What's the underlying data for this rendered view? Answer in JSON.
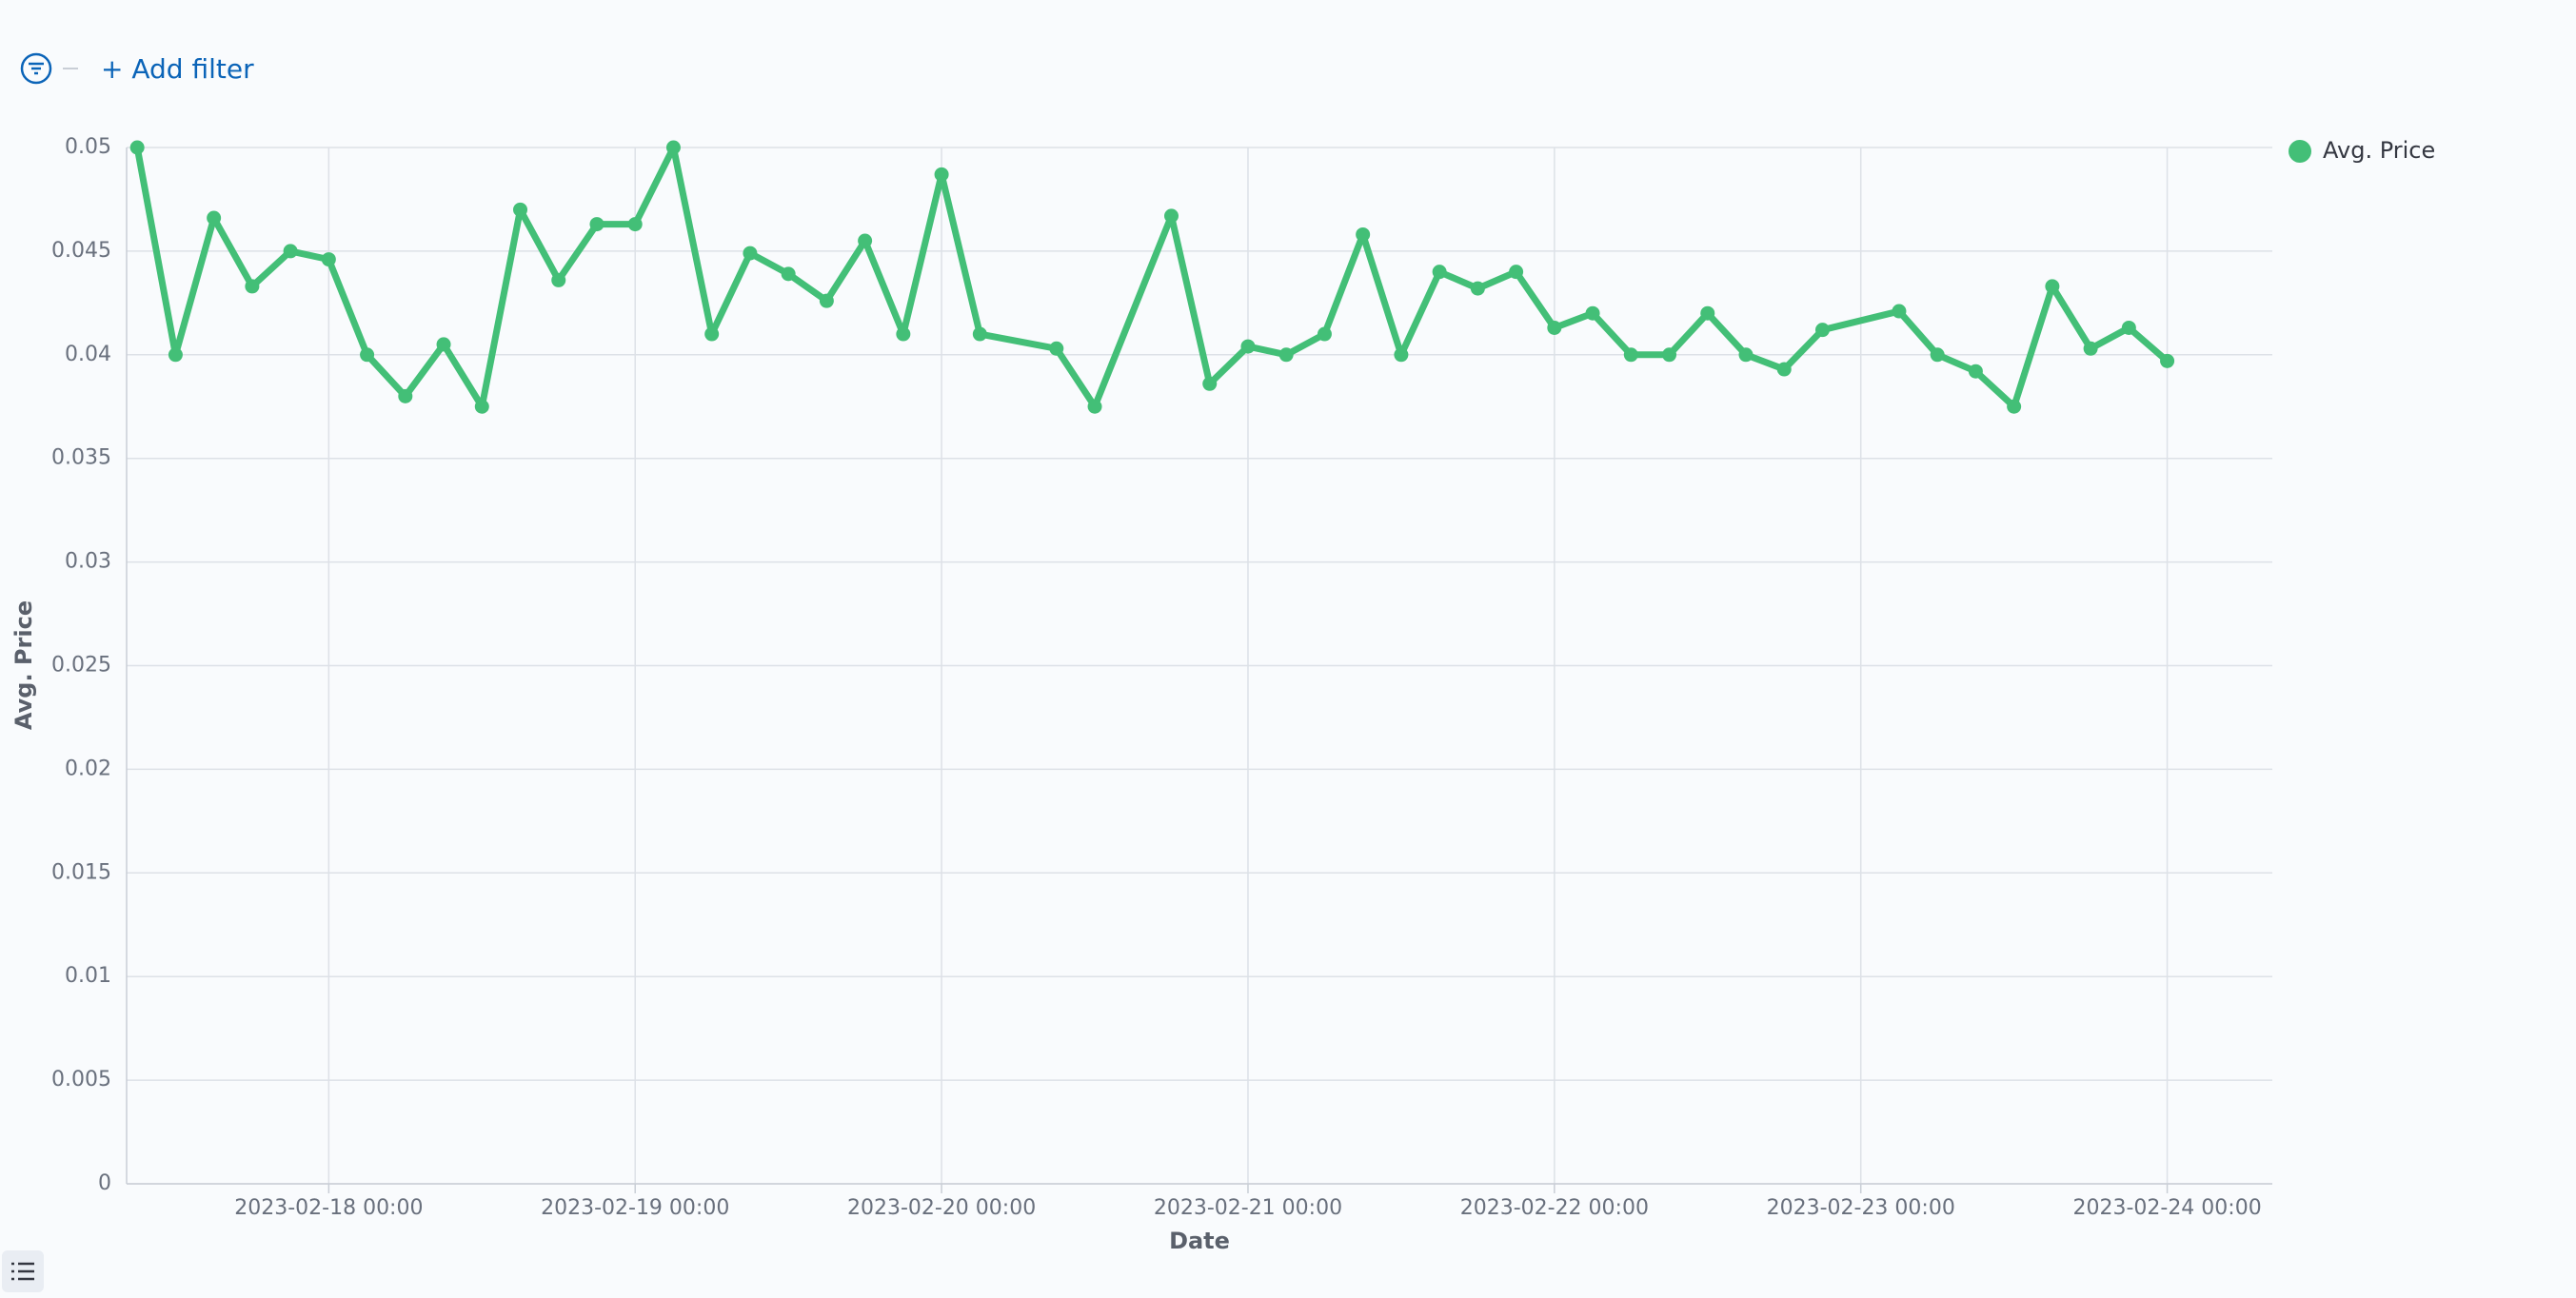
{
  "filter_bar": {
    "add_filter": "+ Add filter"
  },
  "chart_data": {
    "type": "line",
    "x_label": "Date",
    "y_label": "Avg. Price",
    "x": [
      "2023-02-17 09:00",
      "2023-02-17 12:00",
      "2023-02-17 15:00",
      "2023-02-17 18:00",
      "2023-02-17 21:00",
      "2023-02-18 00:00",
      "2023-02-18 03:00",
      "2023-02-18 06:00",
      "2023-02-18 09:00",
      "2023-02-18 12:00",
      "2023-02-18 15:00",
      "2023-02-18 18:00",
      "2023-02-18 21:00",
      "2023-02-19 00:00",
      "2023-02-19 03:00",
      "2023-02-19 06:00",
      "2023-02-19 09:00",
      "2023-02-19 12:00",
      "2023-02-19 15:00",
      "2023-02-19 18:00",
      "2023-02-19 21:00",
      "2023-02-20 00:00",
      "2023-02-20 03:00",
      "2023-02-20 09:00",
      "2023-02-20 12:00",
      "2023-02-20 18:00",
      "2023-02-20 21:00",
      "2023-02-21 00:00",
      "2023-02-21 03:00",
      "2023-02-21 06:00",
      "2023-02-21 09:00",
      "2023-02-21 12:00",
      "2023-02-21 15:00",
      "2023-02-21 18:00",
      "2023-02-21 21:00",
      "2023-02-22 00:00",
      "2023-02-22 03:00",
      "2023-02-22 06:00",
      "2023-02-22 09:00",
      "2023-02-22 12:00",
      "2023-02-22 15:00",
      "2023-02-22 18:00",
      "2023-02-22 21:00",
      "2023-02-23 03:00",
      "2023-02-23 06:00",
      "2023-02-23 09:00",
      "2023-02-23 12:00",
      "2023-02-23 15:00",
      "2023-02-23 18:00",
      "2023-02-23 21:00",
      "2023-02-24 00:00"
    ],
    "series": [
      {
        "name": "Avg. Price",
        "color": "#43bf77",
        "values": [
          0.05,
          0.04,
          0.0466,
          0.0433,
          0.045,
          0.0446,
          0.04,
          0.038,
          0.0405,
          0.0375,
          0.047,
          0.0436,
          0.0463,
          0.0463,
          0.05,
          0.041,
          0.0449,
          0.0439,
          0.0426,
          0.0455,
          0.041,
          0.0487,
          0.041,
          0.0403,
          0.0375,
          0.0467,
          0.0386,
          0.0404,
          0.04,
          0.041,
          0.0458,
          0.04,
          0.044,
          0.0432,
          0.044,
          0.0413,
          0.042,
          0.04,
          0.04,
          0.042,
          0.04,
          0.0393,
          0.0412,
          0.0421,
          0.04,
          0.0392,
          0.0375,
          0.0433,
          0.0403,
          0.0413,
          0.0397
        ]
      }
    ],
    "xlim": [
      "2023-02-17 08:10",
      "2023-02-24 08:14"
    ],
    "xticks": [
      "2023-02-18 00:00",
      "2023-02-19 00:00",
      "2023-02-20 00:00",
      "2023-02-21 00:00",
      "2023-02-22 00:00",
      "2023-02-23 00:00",
      "2023-02-24 00:00"
    ],
    "ylim": [
      0,
      0.05
    ],
    "yticks": [
      0,
      0.005,
      0.01,
      0.015,
      0.02,
      0.025,
      0.03,
      0.035,
      0.04,
      0.045,
      0.05
    ],
    "grid": true,
    "legend": "right"
  }
}
